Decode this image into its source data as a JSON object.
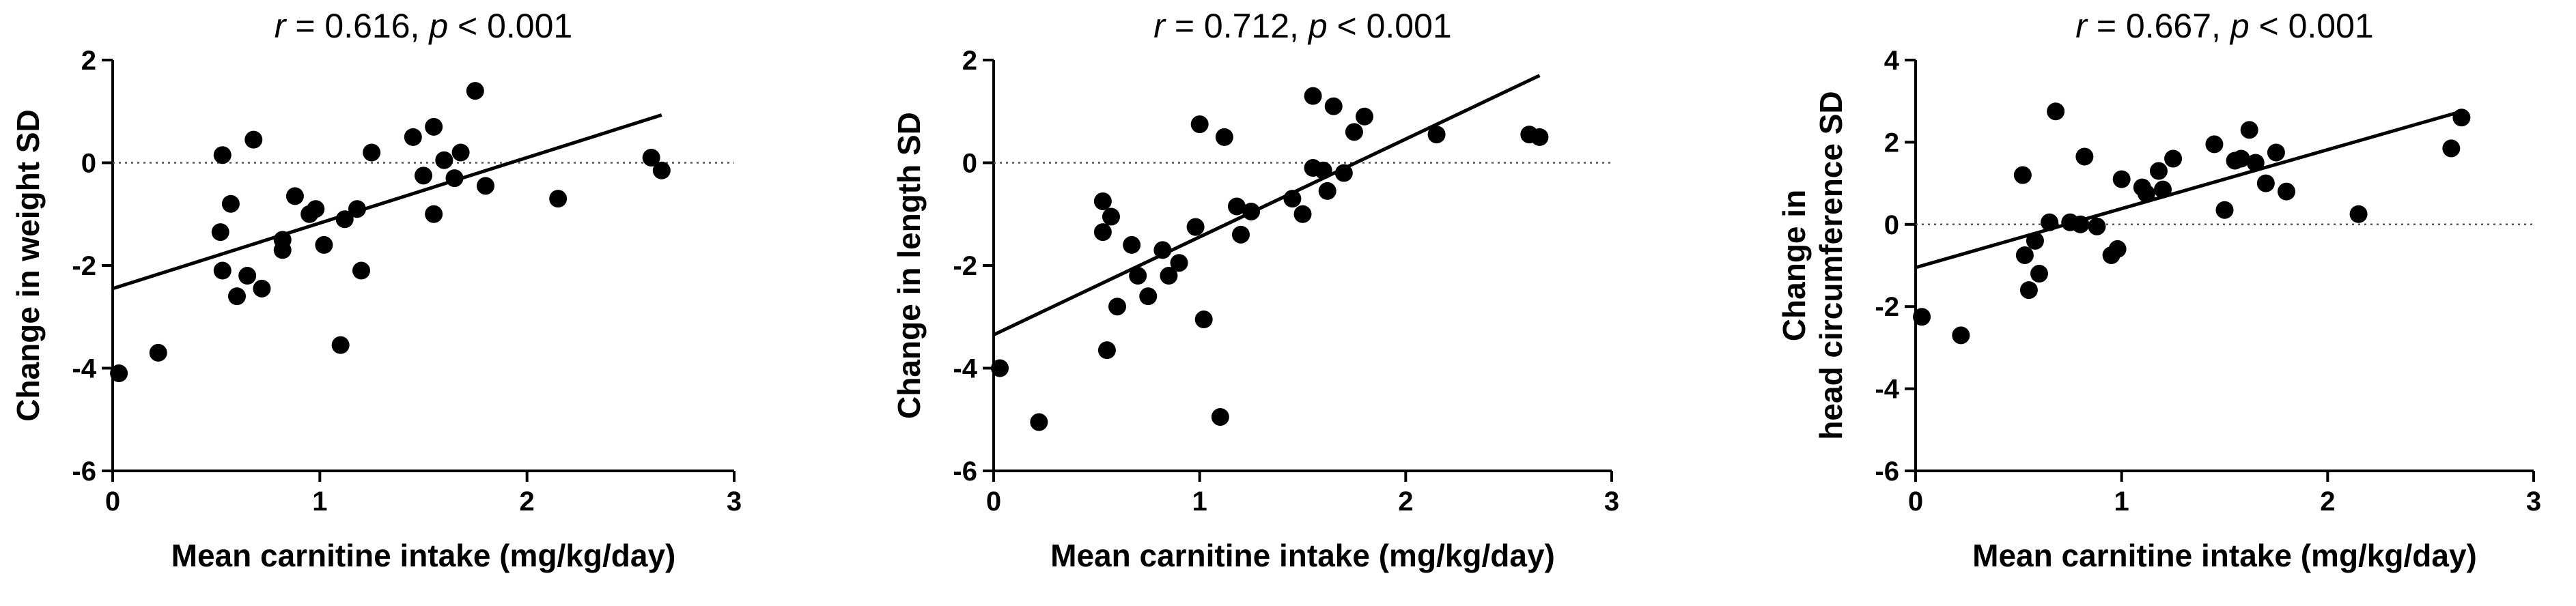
{
  "colors": {
    "ink": "#000000",
    "reference_line": "#555555",
    "background": "#ffffff"
  },
  "chart_data": [
    {
      "type": "scatter",
      "title_r": "r",
      "title_r_value": " = 0.616, ",
      "title_p": "p",
      "title_p_value": " < 0.001",
      "xlabel": "Mean carnitine intake (mg/kg/day)",
      "ylabel": [
        "Change in weight SD"
      ],
      "xlim": [
        0,
        3
      ],
      "ylim": [
        -6,
        2
      ],
      "xticks": [
        "0",
        "1",
        "2",
        "3"
      ],
      "yticks": [
        "-6",
        "-4",
        "-2",
        "0",
        "2"
      ],
      "reference_line_y": 0,
      "fit_line": {
        "x": [
          0,
          2.65
        ],
        "y": [
          -2.45,
          0.93
        ]
      },
      "points": [
        [
          0.03,
          -4.1
        ],
        [
          0.22,
          -3.7
        ],
        [
          0.53,
          0.15
        ],
        [
          0.52,
          -1.35
        ],
        [
          0.53,
          -2.1
        ],
        [
          0.57,
          -0.8
        ],
        [
          0.6,
          -2.6
        ],
        [
          0.65,
          -2.2
        ],
        [
          0.68,
          0.45
        ],
        [
          0.72,
          -2.45
        ],
        [
          0.82,
          -1.5
        ],
        [
          0.82,
          -1.7
        ],
        [
          0.88,
          -0.65
        ],
        [
          0.95,
          -1.0
        ],
        [
          0.98,
          -0.9
        ],
        [
          1.02,
          -1.6
        ],
        [
          1.1,
          -3.55
        ],
        [
          1.12,
          -1.1
        ],
        [
          1.18,
          -0.9
        ],
        [
          1.2,
          -2.1
        ],
        [
          1.25,
          0.2
        ],
        [
          1.45,
          0.5
        ],
        [
          1.5,
          -0.25
        ],
        [
          1.55,
          0.7
        ],
        [
          1.55,
          -1.0
        ],
        [
          1.6,
          0.05
        ],
        [
          1.65,
          -0.3
        ],
        [
          1.68,
          0.2
        ],
        [
          1.75,
          1.4
        ],
        [
          1.8,
          -0.45
        ],
        [
          2.15,
          -0.7
        ],
        [
          2.6,
          0.1
        ],
        [
          2.65,
          -0.15
        ]
      ]
    },
    {
      "type": "scatter",
      "title_r": "r",
      "title_r_value": " = 0.712, ",
      "title_p": "p",
      "title_p_value": " < 0.001",
      "xlabel": "Mean carnitine intake (mg/kg/day)",
      "ylabel": [
        "Change in length SD"
      ],
      "xlim": [
        0,
        3
      ],
      "ylim": [
        -6,
        2
      ],
      "xticks": [
        "0",
        "1",
        "2",
        "3"
      ],
      "yticks": [
        "-6",
        "-4",
        "-2",
        "0",
        "2"
      ],
      "reference_line_y": 0,
      "fit_line": {
        "x": [
          0,
          2.65
        ],
        "y": [
          -3.35,
          1.7
        ]
      },
      "points": [
        [
          0.03,
          -4.0
        ],
        [
          0.22,
          -5.05
        ],
        [
          0.53,
          -0.75
        ],
        [
          0.53,
          -1.35
        ],
        [
          0.55,
          -3.65
        ],
        [
          0.57,
          -1.05
        ],
        [
          0.6,
          -2.8
        ],
        [
          0.67,
          -1.6
        ],
        [
          0.7,
          -2.2
        ],
        [
          0.75,
          -2.6
        ],
        [
          0.82,
          -1.7
        ],
        [
          0.85,
          -2.2
        ],
        [
          0.9,
          -1.95
        ],
        [
          0.98,
          -1.25
        ],
        [
          1.0,
          0.75
        ],
        [
          1.02,
          -3.05
        ],
        [
          1.1,
          -4.95
        ],
        [
          1.12,
          0.5
        ],
        [
          1.18,
          -0.85
        ],
        [
          1.2,
          -1.4
        ],
        [
          1.25,
          -0.95
        ],
        [
          1.45,
          -0.7
        ],
        [
          1.5,
          -1.0
        ],
        [
          1.55,
          1.3
        ],
        [
          1.55,
          -0.1
        ],
        [
          1.6,
          -0.15
        ],
        [
          1.62,
          -0.55
        ],
        [
          1.65,
          1.1
        ],
        [
          1.7,
          -0.2
        ],
        [
          1.75,
          0.6
        ],
        [
          1.8,
          0.9
        ],
        [
          2.15,
          0.55
        ],
        [
          2.6,
          0.55
        ],
        [
          2.65,
          0.5
        ]
      ]
    },
    {
      "type": "scatter",
      "title_r": "r",
      "title_r_value": " = 0.667, ",
      "title_p": "p",
      "title_p_value": " < 0.001",
      "xlabel": "Mean carnitine intake (mg/kg/day)",
      "ylabel": [
        "Change in",
        "head circumference SD"
      ],
      "xlim": [
        0,
        3
      ],
      "ylim": [
        -6,
        4
      ],
      "xticks": [
        "0",
        "1",
        "2",
        "3"
      ],
      "yticks": [
        "-6",
        "-4",
        "-2",
        "0",
        "2",
        "4"
      ],
      "reference_line_y": 0,
      "fit_line": {
        "x": [
          0,
          2.65
        ],
        "y": [
          -1.05,
          2.75
        ]
      },
      "points": [
        [
          0.03,
          -2.25
        ],
        [
          0.22,
          -2.7
        ],
        [
          0.52,
          1.2
        ],
        [
          0.53,
          -0.75
        ],
        [
          0.55,
          -1.6
        ],
        [
          0.58,
          -0.4
        ],
        [
          0.6,
          -1.2
        ],
        [
          0.65,
          0.05
        ],
        [
          0.68,
          2.75
        ],
        [
          0.75,
          0.05
        ],
        [
          0.8,
          0.0
        ],
        [
          0.82,
          1.65
        ],
        [
          0.88,
          -0.05
        ],
        [
          0.95,
          -0.75
        ],
        [
          0.98,
          -0.6
        ],
        [
          1.0,
          1.1
        ],
        [
          1.1,
          0.9
        ],
        [
          1.12,
          0.75
        ],
        [
          1.18,
          1.3
        ],
        [
          1.2,
          0.85
        ],
        [
          1.25,
          1.6
        ],
        [
          1.45,
          1.95
        ],
        [
          1.5,
          0.35
        ],
        [
          1.55,
          1.55
        ],
        [
          1.58,
          1.6
        ],
        [
          1.62,
          2.3
        ],
        [
          1.65,
          1.5
        ],
        [
          1.7,
          1.0
        ],
        [
          1.75,
          1.75
        ],
        [
          1.8,
          0.8
        ],
        [
          2.15,
          0.25
        ],
        [
          2.6,
          1.85
        ],
        [
          2.65,
          2.6
        ]
      ]
    }
  ]
}
